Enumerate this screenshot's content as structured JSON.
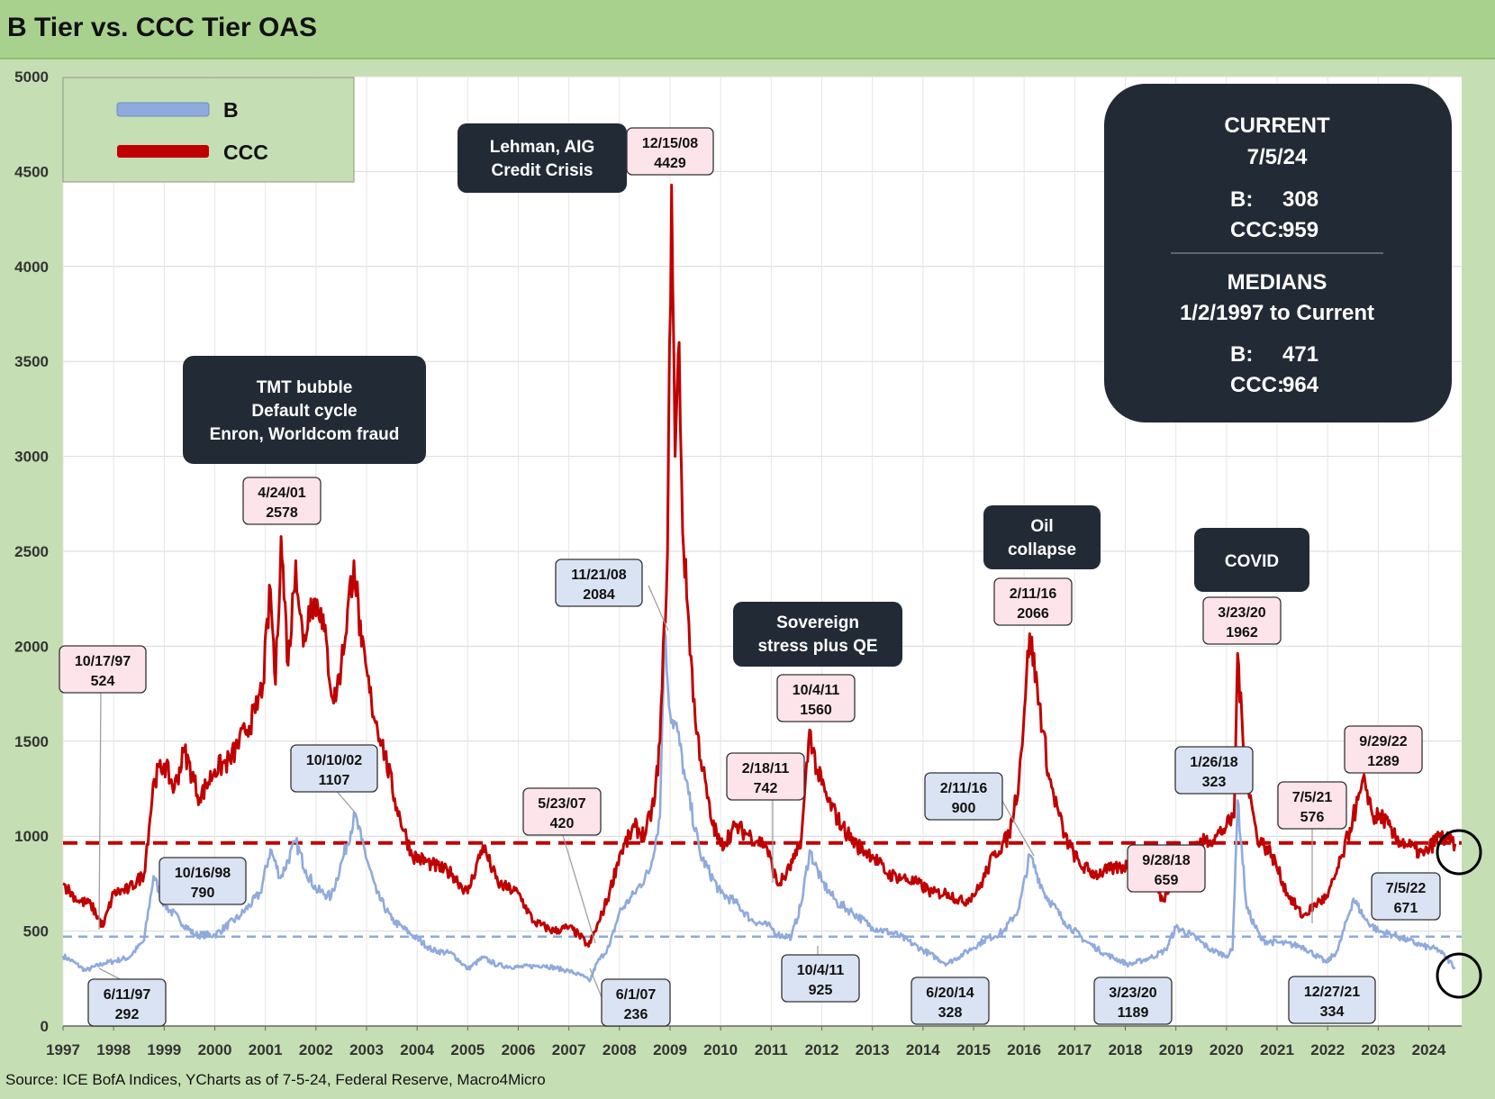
{
  "title": "B Tier vs. CCC Tier OAS",
  "source": "Source: ICE BofA Indices, YCharts as of 7-5-24, Federal Reserve, Macro4Micro",
  "colors": {
    "B": "#8faadc",
    "CCC": "#c00000",
    "header": "#a9d18e",
    "background": "#c5deb3",
    "dark_box": "#222a35",
    "b_label_bg": "#dae3f3",
    "ccc_label_bg": "#fde4ea"
  },
  "chart_data": {
    "type": "line",
    "title": "B Tier vs. CCC Tier OAS",
    "xlabel": "",
    "ylabel": "",
    "xlim": [
      1997.0,
      2024.65
    ],
    "ylim": [
      0,
      5000
    ],
    "yticks": [
      "0",
      "500",
      "1000",
      "1500",
      "2000",
      "2500",
      "3000",
      "3500",
      "4000",
      "4500",
      "5000"
    ],
    "xticks": [
      "1997",
      "1998",
      "1999",
      "2000",
      "2001",
      "2002",
      "2003",
      "2004",
      "2005",
      "2006",
      "2007",
      "2008",
      "2009",
      "2010",
      "2011",
      "2012",
      "2013",
      "2014",
      "2015",
      "2016",
      "2017",
      "2018",
      "2019",
      "2020",
      "2021",
      "2022",
      "2023",
      "2024"
    ],
    "grid": true,
    "legend": "top-left",
    "series": [
      {
        "name": "B",
        "color": "#8faadc",
        "x": [
          1997.0,
          1997.25,
          1997.44,
          1997.8,
          1998.3,
          1998.6,
          1998.79,
          1999.0,
          1999.3,
          1999.6,
          2000.0,
          2000.5,
          2000.9,
          2001.1,
          2001.3,
          2001.6,
          2001.8,
          2002.0,
          2002.3,
          2002.55,
          2002.77,
          2002.9,
          2003.2,
          2003.5,
          2003.9,
          2004.3,
          2004.7,
          2005.0,
          2005.3,
          2005.6,
          2006.0,
          2006.5,
          2007.0,
          2007.3,
          2007.41,
          2007.55,
          2007.8,
          2008.0,
          2008.3,
          2008.6,
          2008.8,
          2008.89,
          2009.0,
          2009.15,
          2009.3,
          2009.6,
          2010.0,
          2010.3,
          2010.6,
          2011.0,
          2011.13,
          2011.4,
          2011.6,
          2011.76,
          2012.0,
          2012.3,
          2012.6,
          2013.0,
          2013.5,
          2014.0,
          2014.47,
          2014.8,
          2015.2,
          2015.6,
          2015.9,
          2016.11,
          2016.4,
          2016.8,
          2017.2,
          2017.6,
          2018.07,
          2018.5,
          2018.8,
          2019.0,
          2019.3,
          2019.7,
          2020.0,
          2020.12,
          2020.22,
          2020.4,
          2020.7,
          2021.0,
          2021.5,
          2021.98,
          2022.2,
          2022.51,
          2022.75,
          2023.0,
          2023.3,
          2023.6,
          2023.9,
          2024.2,
          2024.52
        ],
        "y": [
          370,
          330,
          292,
          330,
          360,
          450,
          790,
          640,
          560,
          480,
          480,
          580,
          700,
          930,
          780,
          970,
          820,
          720,
          680,
          900,
          1107,
          980,
          700,
          560,
          480,
          400,
          380,
          300,
          360,
          320,
          310,
          320,
          290,
          260,
          236,
          330,
          420,
          600,
          700,
          820,
          1100,
          2084,
          1650,
          1550,
          1300,
          900,
          700,
          650,
          560,
          520,
          480,
          470,
          650,
          925,
          760,
          650,
          600,
          520,
          480,
          400,
          328,
          380,
          450,
          500,
          620,
          900,
          700,
          550,
          450,
          380,
          323,
          360,
          400,
          520,
          480,
          400,
          370,
          400,
          1189,
          620,
          450,
          440,
          420,
          334,
          400,
          671,
          560,
          500,
          480,
          450,
          420,
          400,
          308
        ]
      },
      {
        "name": "CCC",
        "color": "#c00000",
        "x": [
          1997.0,
          1997.3,
          1997.55,
          1997.79,
          1998.0,
          1998.3,
          1998.6,
          1998.8,
          1999.0,
          1999.2,
          1999.4,
          1999.7,
          2000.0,
          2000.3,
          2000.6,
          2000.8,
          2000.95,
          2001.1,
          2001.2,
          2001.31,
          2001.45,
          2001.6,
          2001.75,
          2001.9,
          2002.1,
          2002.35,
          2002.5,
          2002.75,
          2002.9,
          2003.1,
          2003.3,
          2003.6,
          2003.9,
          2004.3,
          2004.7,
          2005.0,
          2005.3,
          2005.6,
          2006.0,
          2006.3,
          2006.7,
          2007.0,
          2007.2,
          2007.39,
          2007.6,
          2007.8,
          2008.0,
          2008.3,
          2008.5,
          2008.7,
          2008.8,
          2008.95,
          2009.03,
          2009.1,
          2009.18,
          2009.25,
          2009.35,
          2009.5,
          2009.8,
          2010.0,
          2010.3,
          2010.6,
          2010.9,
          2011.13,
          2011.3,
          2011.5,
          2011.6,
          2011.76,
          2011.9,
          2012.1,
          2012.4,
          2012.7,
          2013.0,
          2013.3,
          2013.6,
          2013.9,
          2014.2,
          2014.5,
          2014.8,
          2015.1,
          2015.4,
          2015.7,
          2015.9,
          2016.11,
          2016.3,
          2016.5,
          2016.8,
          2017.1,
          2017.4,
          2017.8,
          2018.1,
          2018.5,
          2018.74,
          2018.9,
          2019.1,
          2019.4,
          2019.8,
          2020.0,
          2020.15,
          2020.22,
          2020.35,
          2020.6,
          2020.9,
          2021.2,
          2021.51,
          2021.8,
          2022.0,
          2022.3,
          2022.5,
          2022.74,
          2022.9,
          2023.1,
          2023.3,
          2023.6,
          2023.9,
          2024.2,
          2024.52
        ],
        "y": [
          750,
          660,
          640,
          524,
          700,
          720,
          800,
          1300,
          1380,
          1250,
          1450,
          1200,
          1350,
          1400,
          1550,
          1650,
          1800,
          2300,
          1800,
          2578,
          1900,
          2450,
          2000,
          2250,
          2200,
          1700,
          1900,
          2450,
          2000,
          1700,
          1500,
          1150,
          900,
          850,
          800,
          700,
          950,
          750,
          700,
          550,
          500,
          520,
          480,
          420,
          550,
          700,
          900,
          1050,
          1000,
          1200,
          1500,
          2500,
          4429,
          3000,
          3600,
          2600,
          2200,
          1600,
          1100,
          950,
          1050,
          1000,
          950,
          742,
          800,
          900,
          1000,
          1560,
          1350,
          1200,
          1050,
          950,
          900,
          800,
          780,
          750,
          700,
          700,
          650,
          720,
          900,
          1000,
          1300,
          2066,
          1700,
          1300,
          1000,
          850,
          800,
          830,
          850,
          800,
          659,
          760,
          900,
          950,
          1000,
          1050,
          1100,
          1962,
          1400,
          1000,
          900,
          700,
          576,
          650,
          680,
          900,
          1100,
          1289,
          1100,
          1100,
          1000,
          950,
          900,
          1000,
          959
        ]
      }
    ],
    "reference_lines": [
      {
        "series": "B",
        "label": "B median",
        "value": 471
      },
      {
        "series": "CCC",
        "label": "CCC median",
        "value": 964
      }
    ]
  },
  "legend": {
    "b": "B",
    "ccc": "CCC"
  },
  "info_box": {
    "current_title": "CURRENT",
    "current_date": "7/5/24",
    "b_label": "B:",
    "b_value": "308",
    "ccc_label": "CCC:",
    "ccc_value": "959",
    "medians_title": "MEDIANS",
    "medians_range": "1/2/1997 to Current",
    "b_median": "471",
    "ccc_median": "964"
  },
  "events": [
    {
      "id": "tmt",
      "lines": [
        "TMT bubble",
        "Default cycle",
        "Enron, Worldcom fraud"
      ]
    },
    {
      "id": "lehman",
      "lines": [
        "Lehman, AIG",
        "Credit Crisis"
      ]
    },
    {
      "id": "sovereign",
      "lines": [
        "Sovereign",
        "stress plus QE"
      ]
    },
    {
      "id": "oil",
      "lines": [
        "Oil",
        "collapse"
      ]
    },
    {
      "id": "covid",
      "lines": [
        "COVID"
      ]
    }
  ],
  "ccc_labels": [
    {
      "date": "10/17/97",
      "value": "524"
    },
    {
      "date": "4/24/01",
      "value": "2578"
    },
    {
      "date": "5/23/07",
      "value": "420"
    },
    {
      "date": "12/15/08",
      "value": "4429"
    },
    {
      "date": "2/18/11",
      "value": "742"
    },
    {
      "date": "10/4/11",
      "value": "1560"
    },
    {
      "date": "2/11/16",
      "value": "2066"
    },
    {
      "date": "9/28/18",
      "value": "659"
    },
    {
      "date": "3/23/20",
      "value": "1962"
    },
    {
      "date": "7/5/21",
      "value": "576"
    },
    {
      "date": "9/29/22",
      "value": "1289"
    }
  ],
  "b_labels": [
    {
      "date": "6/11/97",
      "value": "292"
    },
    {
      "date": "10/16/98",
      "value": "790"
    },
    {
      "date": "10/10/02",
      "value": "1107"
    },
    {
      "date": "6/1/07",
      "value": "236"
    },
    {
      "date": "11/21/08",
      "value": "2084"
    },
    {
      "date": "10/4/11",
      "value": "925"
    },
    {
      "date": "6/20/14",
      "value": "328"
    },
    {
      "date": "2/11/16",
      "value": "900"
    },
    {
      "date": "1/26/18",
      "value": "323"
    },
    {
      "date": "3/23/20",
      "value": "1189"
    },
    {
      "date": "12/27/21",
      "value": "334"
    },
    {
      "date": "7/5/22",
      "value": "671"
    }
  ]
}
